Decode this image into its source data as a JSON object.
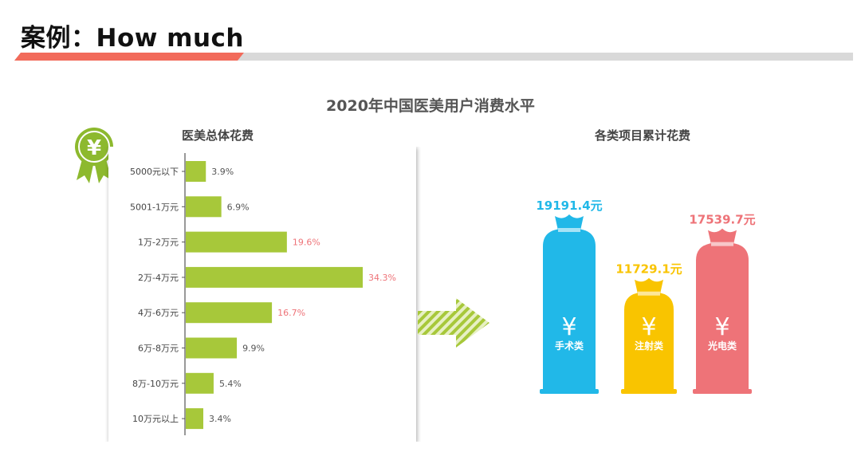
{
  "slide": {
    "title": "案例：How much"
  },
  "colors": {
    "accent_red": "#F26B5B",
    "bar_green": "#A7C83A",
    "blue": "#21B8E8",
    "yellow": "#F9C400",
    "pink": "#EE7378"
  },
  "chart_data": [
    {
      "type": "bar",
      "orientation": "horizontal",
      "title": "2020年中国医美用户消费水平",
      "subtitle": "医美总体花费",
      "categories": [
        "5000元以下",
        "5001-1万元",
        "1万-2万元",
        "2万-4万元",
        "4万-6万元",
        "6万-8万元",
        "8万-10万元",
        "10万元以上"
      ],
      "values": [
        3.9,
        6.9,
        19.6,
        34.3,
        16.7,
        9.9,
        5.4,
        3.4
      ],
      "value_labels": [
        "3.9%",
        "6.9%",
        "19.6%",
        "34.3%",
        "16.7%",
        "9.9%",
        "5.4%",
        "3.4%"
      ],
      "highlight_threshold": 15,
      "xlim": [
        0,
        36
      ],
      "grid": false,
      "icon": "yen-medal-icon"
    },
    {
      "type": "bar",
      "subtitle": "各类项目累计花费",
      "categories": [
        "手术类",
        "注射类",
        "光电类"
      ],
      "values": [
        19191.4,
        11729.1,
        17539.7
      ],
      "value_labels": [
        "19191.4元",
        "11729.1元",
        "17539.7元"
      ],
      "colors": [
        "#21B8E8",
        "#F9C400",
        "#EE7378"
      ],
      "symbol": "¥",
      "ylim": [
        0,
        20000
      ],
      "icon": "money-bag-icon"
    }
  ]
}
